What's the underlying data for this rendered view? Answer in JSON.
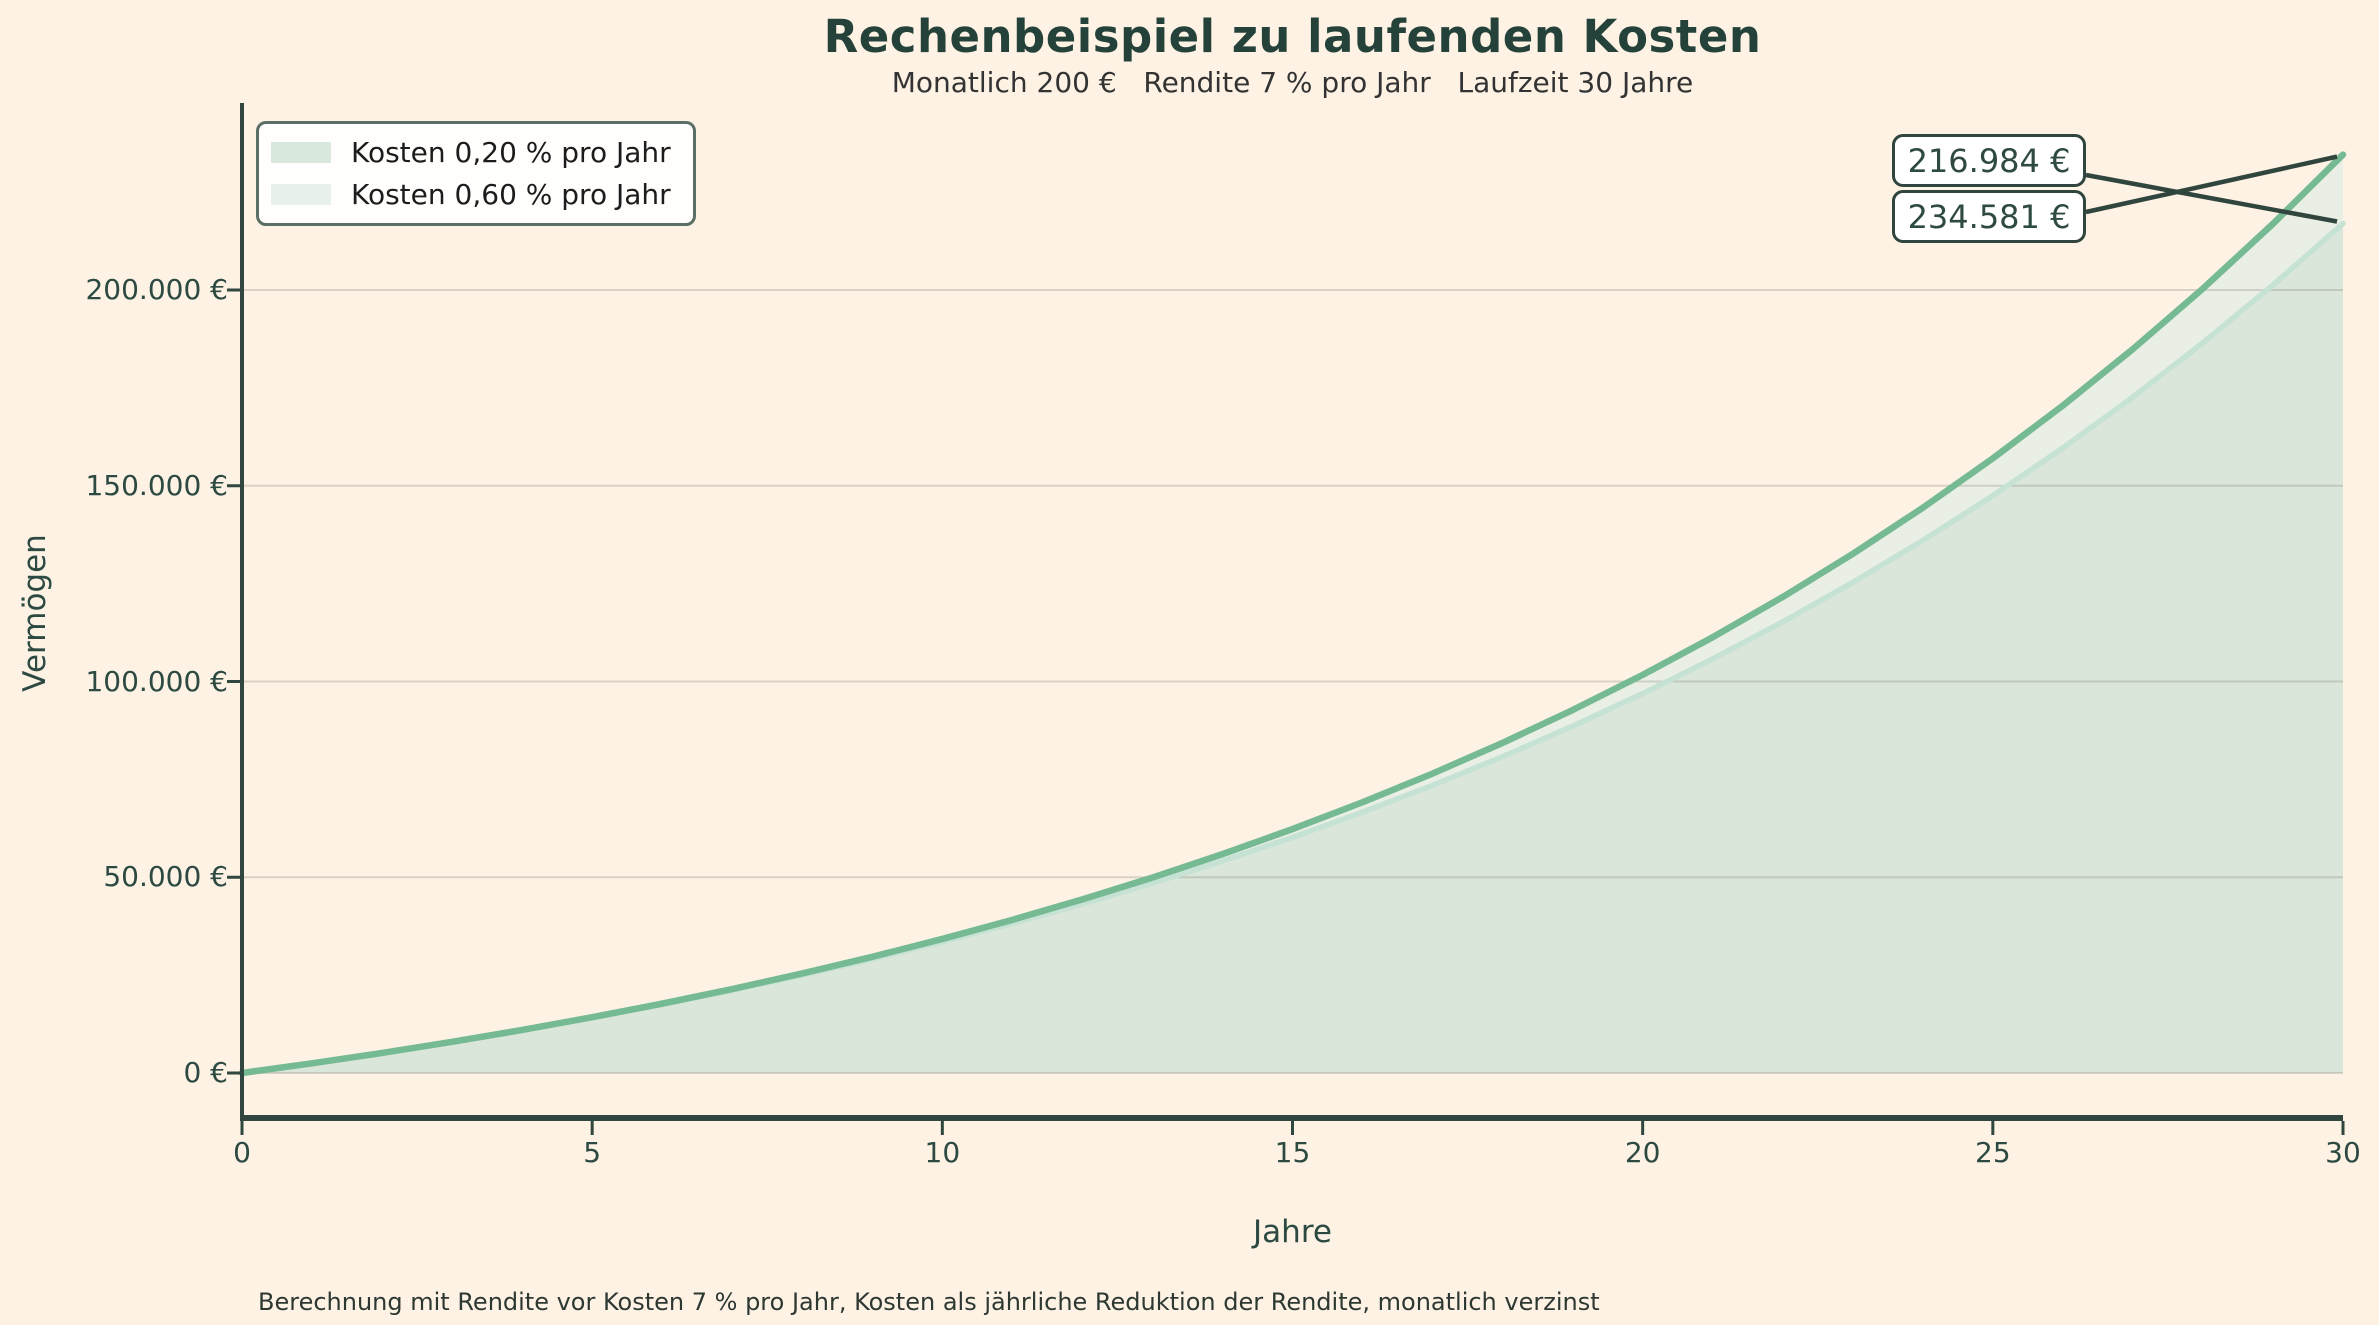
{
  "colors": {
    "background": "#fdf2e4",
    "axis": "#31463e",
    "tick_label": "#2d4a42",
    "title": "#25423a",
    "grid": "rgba(140,135,125,0.3)",
    "annotation_line": "#2f453d"
  },
  "chart_data": {
    "type": "area",
    "title": "Rechenbeispiel zu laufenden Kosten",
    "subtitle": "Monatlich 200 €   Rendite 7 % pro Jahr   Laufzeit 30 Jahre",
    "xlabel": "Jahre",
    "ylabel": "Vermögen",
    "footnote": "Berechnung mit Rendite vor Kosten 7 % pro Jahr, Kosten als jährliche Reduktion der Rendite, monatlich verzinst",
    "x": [
      0,
      1,
      2,
      3,
      4,
      5,
      6,
      7,
      8,
      9,
      10,
      11,
      12,
      13,
      14,
      15,
      16,
      17,
      18,
      19,
      20,
      21,
      22,
      23,
      24,
      25,
      26,
      27,
      28,
      29,
      30
    ],
    "series": [
      {
        "name": "Kosten 0,20 % pro Jahr",
        "line_color": "#76ba94",
        "legend_swatch": "#d9e8dc",
        "values": [
          0,
          2476,
          5126,
          7962,
          10997,
          14245,
          17721,
          21441,
          25421,
          29681,
          34240,
          39118,
          44339,
          49926,
          55906,
          62304,
          69152,
          76481,
          84323,
          92716,
          101697,
          111309,
          121595,
          132603,
          144383,
          156990,
          170482,
          184920,
          200371,
          216906,
          234581
        ]
      },
      {
        "name": "Kosten 0,60 % pro Jahr",
        "line_color": "#c6e2d4",
        "legend_swatch": "#e7f0e9",
        "values": [
          0,
          2472,
          5106,
          7915,
          10908,
          14099,
          17501,
          21126,
          24990,
          29109,
          33500,
          38180,
          43168,
          48486,
          54153,
          60195,
          66634,
          73498,
          80814,
          88613,
          96926,
          105787,
          115232,
          125300,
          136031,
          147469,
          159662,
          172658,
          186512,
          201278,
          216984
        ]
      }
    ],
    "fill_colors": {
      "single": "#e9efe5",
      "overlap": "#d9e6d9"
    },
    "xlim": [
      0,
      30
    ],
    "ylim": [
      0,
      247500
    ],
    "grid": "horizontal",
    "legend_position": "upper left",
    "x_ticks": {
      "values": [
        0,
        5,
        10,
        15,
        20,
        25,
        30
      ],
      "labels": [
        "0",
        "5",
        "10",
        "15",
        "20",
        "25",
        "30"
      ]
    },
    "y_ticks": {
      "values": [
        0,
        50000,
        100000,
        150000,
        200000
      ],
      "labels": [
        "0 €",
        "50.000 €",
        "100.000 €",
        "150.000 €",
        "200.000 €"
      ]
    },
    "annotations": [
      {
        "text": "216.984 €",
        "series": "Kosten 0,60 % pro Jahr",
        "year": 30,
        "value": 216984
      },
      {
        "text": "234.581 €",
        "series": "Kosten 0,20 % pro Jahr",
        "year": 30,
        "value": 234581
      }
    ]
  }
}
